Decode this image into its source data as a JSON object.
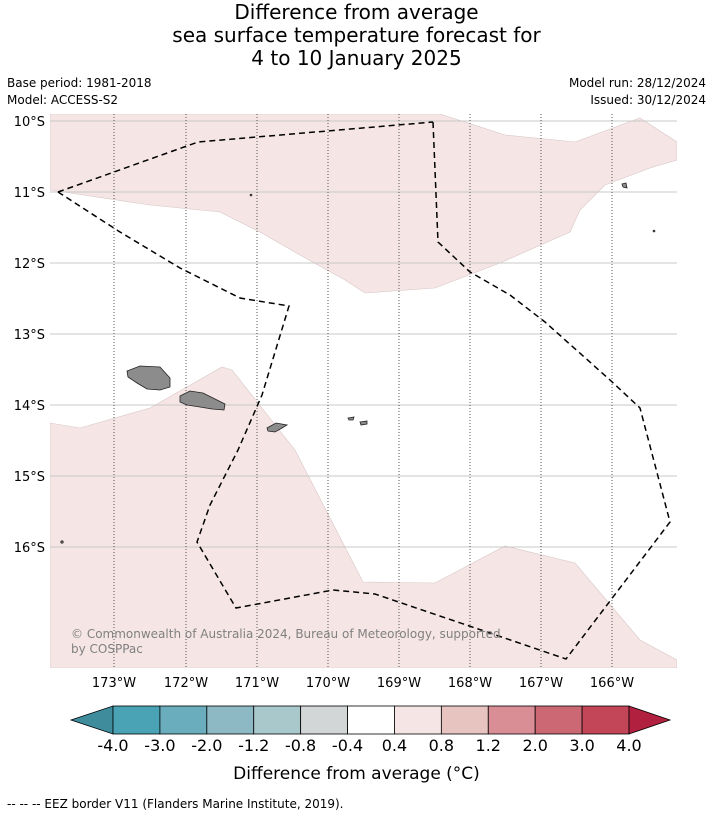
{
  "title": {
    "line1": "Difference from average",
    "line2": "sea surface temperature forecast for",
    "line3": "4 to 10 January 2025"
  },
  "meta": {
    "base_period": "Base period: 1981-2018",
    "model": "Model: ACCESS-S2",
    "model_run": "Model run: 28/12/2024",
    "issued": "Issued: 30/12/2024"
  },
  "map": {
    "lat_labels": [
      "10°S",
      "11°S",
      "12°S",
      "13°S",
      "14°S",
      "15°S",
      "16°S"
    ],
    "lon_labels": [
      "173°W",
      "172°W",
      "171°W",
      "170°W",
      "169°W",
      "168°W",
      "167°W",
      "166°W"
    ],
    "anomaly_fill_color": "#f5e6e5",
    "land_color": "#8c8c8c",
    "eez_border_style": "dashed"
  },
  "copyright": "© Commonwealth of Australia 2024, Bureau of Meteorology, supported by COSPPac",
  "colorbar": {
    "ticks": [
      "-4.0",
      "-3.0",
      "-2.0",
      "-1.2",
      "-0.8",
      "-0.4",
      "0.4",
      "0.8",
      "1.2",
      "2.0",
      "3.0",
      "4.0"
    ],
    "colors": [
      "#3f8d9c",
      "#49a3b5",
      "#6aaebe",
      "#8cb9c4",
      "#a9c8cb",
      "#d3d6d6",
      "#ffffff",
      "#f5e6e5",
      "#e7c4c0",
      "#d98e95",
      "#cc6874",
      "#c24558",
      "#b2203f"
    ],
    "label": "Difference from average (°C)"
  },
  "footer": "--  --  -- EEZ border V11 (Flanders Marine Institute, 2019)."
}
